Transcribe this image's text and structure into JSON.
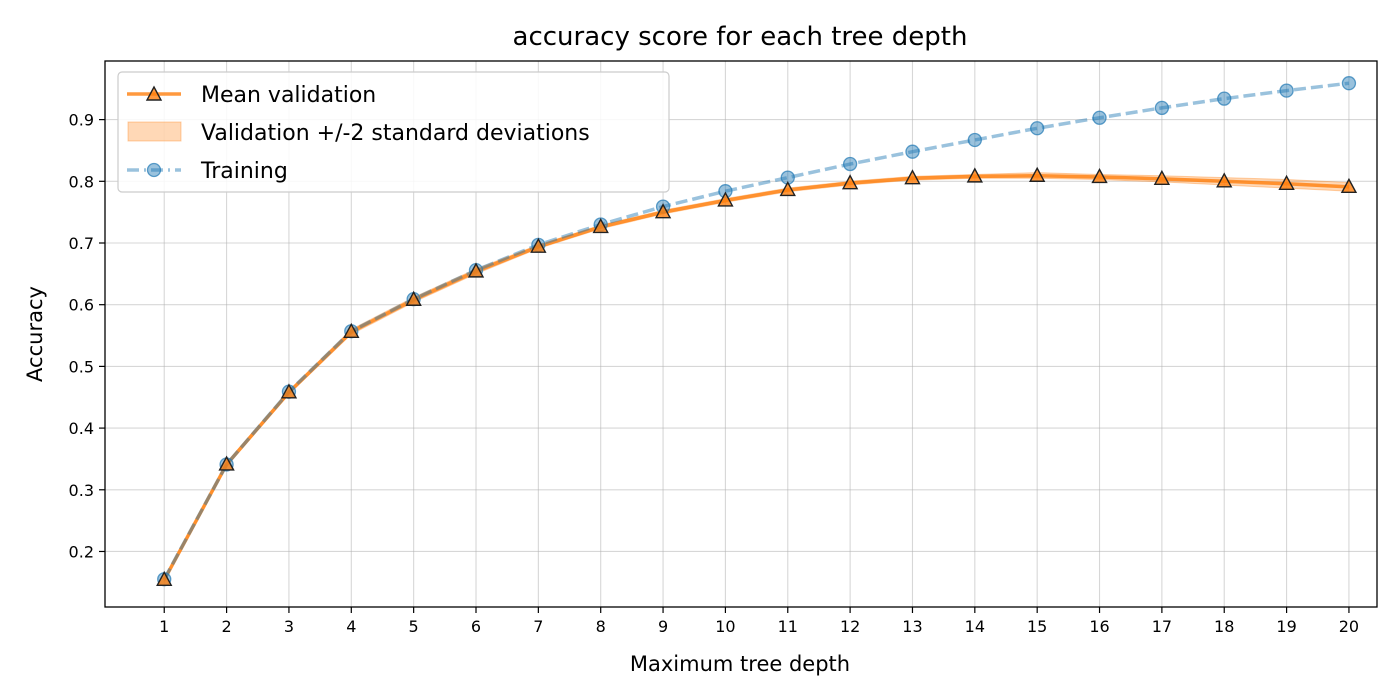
{
  "chart_data": {
    "type": "line",
    "title": "accuracy score for each tree depth",
    "xlabel": "Maximum tree depth",
    "ylabel": "Accuracy",
    "x": [
      1,
      2,
      3,
      4,
      5,
      6,
      7,
      8,
      9,
      10,
      11,
      12,
      13,
      14,
      15,
      16,
      17,
      18,
      19,
      20
    ],
    "xlim": [
      0.05,
      20.45
    ],
    "ylim": [
      0.11,
      0.995
    ],
    "yticks": [
      0.2,
      0.3,
      0.4,
      0.5,
      0.6,
      0.7,
      0.8,
      0.9
    ],
    "ytick_labels": [
      "0.2",
      "0.3",
      "0.4",
      "0.5",
      "0.6",
      "0.7",
      "0.8",
      "0.9"
    ],
    "xtick_labels": [
      "1",
      "2",
      "3",
      "4",
      "5",
      "6",
      "7",
      "8",
      "9",
      "10",
      "11",
      "12",
      "13",
      "14",
      "15",
      "16",
      "17",
      "18",
      "19",
      "20"
    ],
    "grid": true,
    "legend_position": "top-left",
    "series": [
      {
        "name": "Mean validation",
        "kind": "line",
        "marker": "triangle",
        "color": "#ff7f0e",
        "values": [
          0.154,
          0.341,
          0.458,
          0.556,
          0.608,
          0.654,
          0.694,
          0.726,
          0.75,
          0.769,
          0.786,
          0.797,
          0.805,
          0.808,
          0.809,
          0.807,
          0.804,
          0.8,
          0.796,
          0.791
        ]
      },
      {
        "name": "Validation +/-2 standard deviations",
        "kind": "band",
        "color": "#ff7f0e",
        "lower": [
          0.151,
          0.338,
          0.455,
          0.552,
          0.604,
          0.65,
          0.691,
          0.723,
          0.747,
          0.766,
          0.783,
          0.794,
          0.802,
          0.805,
          0.805,
          0.803,
          0.799,
          0.794,
          0.789,
          0.784
        ],
        "upper": [
          0.157,
          0.344,
          0.461,
          0.56,
          0.612,
          0.658,
          0.697,
          0.729,
          0.753,
          0.772,
          0.789,
          0.8,
          0.808,
          0.811,
          0.814,
          0.811,
          0.809,
          0.806,
          0.803,
          0.798
        ]
      },
      {
        "name": "Training",
        "kind": "line",
        "marker": "circle",
        "color": "#1f77b4",
        "values": [
          0.155,
          0.341,
          0.459,
          0.557,
          0.609,
          0.656,
          0.697,
          0.73,
          0.759,
          0.784,
          0.806,
          0.828,
          0.848,
          0.867,
          0.886,
          0.903,
          0.919,
          0.934,
          0.947,
          0.959
        ]
      }
    ]
  }
}
